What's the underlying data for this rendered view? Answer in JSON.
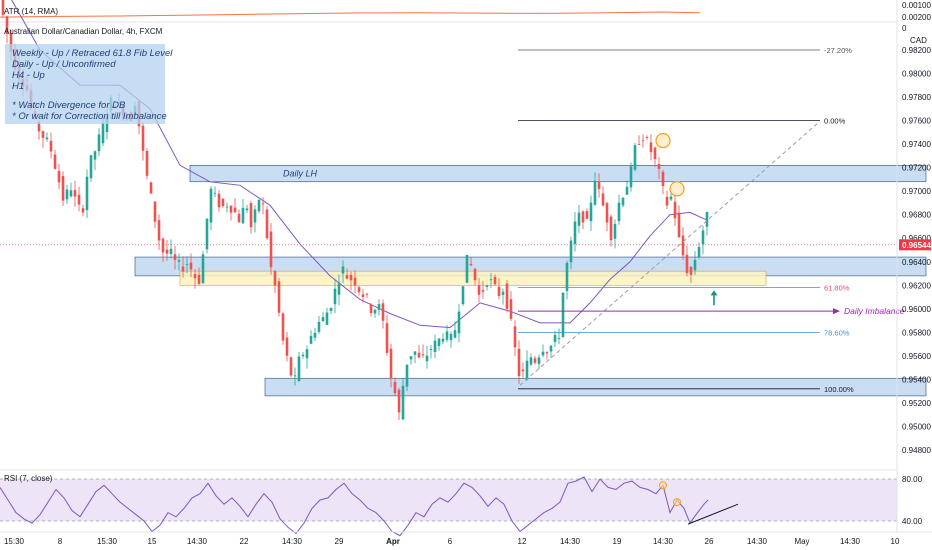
{
  "atr": {
    "label": "ATR (14, RMA)",
    "axis_ticks": [
      "0.00200",
      "0.00100"
    ]
  },
  "symbol": {
    "title": "Australian Dollar/Canadian Dollar, 4h, FXCM",
    "currency": "CAD"
  },
  "notes": [
    "Weekly - Up / Retraced 61.8 Fib Level",
    "Daily    - Up / Unconfirmed",
    "H4       - Up",
    "H1",
    "",
    "* Watch Divergence for DB",
    "* Or wait for Correction till Imbalance"
  ],
  "annotations": {
    "daily_lh": "Daily LH",
    "daily_imbalance": "Daily Imbalance"
  },
  "fib_levels": [
    {
      "label": "-27.20%",
      "price": 0.982,
      "color": "#555555"
    },
    {
      "label": "0.00%",
      "price": 0.976,
      "color": "#131722"
    },
    {
      "label": "61.80%",
      "price": 0.9618,
      "color": "#e84d6b"
    },
    {
      "label": "78.60%",
      "price": 0.958,
      "color": "#3d8fd6"
    },
    {
      "label": "100.00%",
      "price": 0.9532,
      "color": "#131722"
    }
  ],
  "current_price": {
    "value": 0.96544,
    "label": "0.96544",
    "color": "#f23645"
  },
  "price_axis": {
    "ticks": [
      "0.98200",
      "0.98000",
      "0.97800",
      "0.97600",
      "0.97400",
      "0.97200",
      "0.97000",
      "0.96800",
      "0.96600",
      "0.96400",
      "0.96200",
      "0.96000",
      "0.95800",
      "0.95600",
      "0.95400",
      "0.95200",
      "0.95000",
      "0.94800"
    ],
    "top_label": "0"
  },
  "time_axis": {
    "ticks": [
      "15:30",
      "8",
      "15:30",
      "15",
      "14:30",
      "22",
      "14:30",
      "29",
      "Apr",
      "6",
      "12",
      "14:30",
      "19",
      "14:30",
      "26",
      "14:30",
      "May",
      "14:30",
      "10"
    ]
  },
  "rsi": {
    "label": "RSI (7, close)",
    "axis_ticks": [
      "80.00",
      "40.00"
    ],
    "upper": 80,
    "lower": 40
  },
  "colors": {
    "bull": "#26a69a",
    "bear": "#ef5350",
    "ma": "#7e57c2",
    "atr": "#ff7043",
    "rsi": "#7e57c2",
    "zone": "#bcd4f0",
    "zone_border": "#2a4d7a",
    "imbalance_zone": "#fdf3c0"
  },
  "chart_data": {
    "type": "candlestick",
    "title": "Australian Dollar/Canadian Dollar, 4h, FXCM",
    "ylim": [
      0.947,
      0.984
    ],
    "price_path": [
      [
        0,
        0.987
      ],
      [
        6,
        0.9845
      ],
      [
        12,
        0.9822
      ],
      [
        20,
        0.98
      ],
      [
        28,
        0.979
      ],
      [
        36,
        0.976
      ],
      [
        44,
        0.9748
      ],
      [
        52,
        0.9738
      ],
      [
        60,
        0.9712
      ],
      [
        66,
        0.969
      ],
      [
        72,
        0.9706
      ],
      [
        78,
        0.969
      ],
      [
        84,
        0.968
      ],
      [
        90,
        0.972
      ],
      [
        96,
        0.9732
      ],
      [
        104,
        0.9752
      ],
      [
        112,
        0.9776
      ],
      [
        118,
        0.9775
      ],
      [
        126,
        0.9768
      ],
      [
        132,
        0.976
      ],
      [
        138,
        0.978
      ],
      [
        142,
        0.9748
      ],
      [
        148,
        0.9716
      ],
      [
        154,
        0.969
      ],
      [
        160,
        0.9662
      ],
      [
        166,
        0.9646
      ],
      [
        172,
        0.9648
      ],
      [
        178,
        0.9638
      ],
      [
        184,
        0.9635
      ],
      [
        190,
        0.964
      ],
      [
        196,
        0.9628
      ],
      [
        202,
        0.9624
      ],
      [
        208,
        0.9668
      ],
      [
        212,
        0.9702
      ],
      [
        218,
        0.9693
      ],
      [
        224,
        0.9686
      ],
      [
        230,
        0.969
      ],
      [
        236,
        0.9683
      ],
      [
        242,
        0.9675
      ],
      [
        248,
        0.9692
      ],
      [
        254,
        0.9665
      ],
      [
        260,
        0.9695
      ],
      [
        266,
        0.9685
      ],
      [
        272,
        0.9638
      ],
      [
        278,
        0.9615
      ],
      [
        284,
        0.9576
      ],
      [
        290,
        0.9554
      ],
      [
        296,
        0.9535
      ],
      [
        302,
        0.956
      ],
      [
        308,
        0.9565
      ],
      [
        314,
        0.9578
      ],
      [
        320,
        0.9588
      ],
      [
        326,
        0.9592
      ],
      [
        332,
        0.9602
      ],
      [
        338,
        0.9618
      ],
      [
        344,
        0.9635
      ],
      [
        350,
        0.9626
      ],
      [
        356,
        0.9625
      ],
      [
        362,
        0.9615
      ],
      [
        368,
        0.961
      ],
      [
        374,
        0.9598
      ],
      [
        380,
        0.9604
      ],
      [
        386,
        0.9585
      ],
      [
        392,
        0.9545
      ],
      [
        398,
        0.9525
      ],
      [
        402,
        0.9505
      ],
      [
        406,
        0.9545
      ],
      [
        410,
        0.9558
      ],
      [
        416,
        0.9565
      ],
      [
        422,
        0.9555
      ],
      [
        428,
        0.956
      ],
      [
        434,
        0.9568
      ],
      [
        440,
        0.9572
      ],
      [
        446,
        0.958
      ],
      [
        452,
        0.9572
      ],
      [
        458,
        0.9585
      ],
      [
        464,
        0.962
      ],
      [
        470,
        0.9645
      ],
      [
        476,
        0.9628
      ],
      [
        482,
        0.9608
      ],
      [
        488,
        0.9625
      ],
      [
        494,
        0.9622
      ],
      [
        500,
        0.9612
      ],
      [
        506,
        0.9618
      ],
      [
        512,
        0.9592
      ],
      [
        518,
        0.956
      ],
      [
        522,
        0.954
      ],
      [
        526,
        0.9546
      ],
      [
        532,
        0.956
      ],
      [
        538,
        0.9556
      ],
      [
        544,
        0.9568
      ],
      [
        550,
        0.9565
      ],
      [
        556,
        0.9572
      ],
      [
        562,
        0.958
      ],
      [
        566,
        0.9625
      ],
      [
        572,
        0.965
      ],
      [
        578,
        0.9676
      ],
      [
        584,
        0.968
      ],
      [
        590,
        0.967
      ],
      [
        596,
        0.9715
      ],
      [
        602,
        0.9695
      ],
      [
        608,
        0.968
      ],
      [
        614,
        0.966
      ],
      [
        620,
        0.9688
      ],
      [
        626,
        0.97
      ],
      [
        632,
        0.9712
      ],
      [
        638,
        0.974
      ],
      [
        644,
        0.9748
      ],
      [
        650,
        0.974
      ],
      [
        656,
        0.9728
      ],
      [
        662,
        0.9712
      ],
      [
        668,
        0.9688
      ],
      [
        674,
        0.9696
      ],
      [
        680,
        0.9662
      ],
      [
        686,
        0.9642
      ],
      [
        692,
        0.9625
      ],
      [
        698,
        0.9646
      ],
      [
        704,
        0.9664
      ],
      [
        708,
        0.9678
      ]
    ],
    "moving_average": [
      [
        0,
        0.988
      ],
      [
        40,
        0.982
      ],
      [
        80,
        0.979
      ],
      [
        120,
        0.979
      ],
      [
        150,
        0.977
      ],
      [
        180,
        0.9722
      ],
      [
        210,
        0.9708
      ],
      [
        240,
        0.9705
      ],
      [
        270,
        0.9688
      ],
      [
        300,
        0.9655
      ],
      [
        330,
        0.9628
      ],
      [
        360,
        0.9608
      ],
      [
        390,
        0.9596
      ],
      [
        420,
        0.9586
      ],
      [
        450,
        0.9584
      ],
      [
        480,
        0.9605
      ],
      [
        510,
        0.9598
      ],
      [
        540,
        0.9588
      ],
      [
        570,
        0.9588
      ],
      [
        590,
        0.9605
      ],
      [
        610,
        0.9625
      ],
      [
        630,
        0.964
      ],
      [
        650,
        0.9662
      ],
      [
        670,
        0.968
      ],
      [
        690,
        0.9682
      ],
      [
        708,
        0.9675
      ]
    ],
    "zones": [
      {
        "name": "Daily LH",
        "x1": 190,
        "x2": 926,
        "top": 0.9722,
        "bottom": 0.9708
      },
      {
        "name": "support",
        "x1": 135,
        "x2": 926,
        "top": 0.9644,
        "bottom": 0.9628
      },
      {
        "name": "imbalance",
        "x1": 180,
        "x2": 766,
        "top": 0.9632,
        "bottom": 0.962
      },
      {
        "name": "low",
        "x1": 265,
        "x2": 926,
        "top": 0.9541,
        "bottom": 0.9526
      }
    ],
    "markers": [
      {
        "x": 663,
        "price": 0.9743,
        "r": 7
      },
      {
        "x": 677,
        "price": 0.9702,
        "r": 7
      }
    ],
    "trendline": [
      [
        520,
        0.9535
      ],
      [
        818,
        0.9758
      ]
    ],
    "arrow": {
      "x": 714,
      "price_from": 0.9603,
      "price_to": 0.9614
    },
    "atr_path": [
      [
        0,
        9.9
      ],
      [
        60,
        10.4
      ],
      [
        120,
        10.7
      ],
      [
        180,
        11.2
      ],
      [
        240,
        11.8
      ],
      [
        300,
        12.4
      ],
      [
        360,
        12.9
      ],
      [
        420,
        13.0
      ],
      [
        480,
        12.8
      ],
      [
        540,
        12.6
      ],
      [
        600,
        12.9
      ],
      [
        660,
        13.6
      ],
      [
        700,
        13.0
      ]
    ],
    "rsi_path": [
      [
        0,
        72
      ],
      [
        8,
        60
      ],
      [
        16,
        48
      ],
      [
        24,
        42
      ],
      [
        32,
        38
      ],
      [
        40,
        46
      ],
      [
        48,
        58
      ],
      [
        56,
        70
      ],
      [
        64,
        62
      ],
      [
        72,
        50
      ],
      [
        80,
        44
      ],
      [
        88,
        56
      ],
      [
        96,
        68
      ],
      [
        104,
        74
      ],
      [
        112,
        66
      ],
      [
        120,
        58
      ],
      [
        128,
        52
      ],
      [
        136,
        46
      ],
      [
        144,
        40
      ],
      [
        152,
        30
      ],
      [
        160,
        36
      ],
      [
        168,
        48
      ],
      [
        176,
        44
      ],
      [
        184,
        52
      ],
      [
        192,
        62
      ],
      [
        200,
        66
      ],
      [
        208,
        76
      ],
      [
        216,
        64
      ],
      [
        224,
        56
      ],
      [
        232,
        62
      ],
      [
        240,
        54
      ],
      [
        248,
        44
      ],
      [
        256,
        56
      ],
      [
        264,
        66
      ],
      [
        272,
        58
      ],
      [
        280,
        42
      ],
      [
        288,
        34
      ],
      [
        296,
        28
      ],
      [
        304,
        38
      ],
      [
        312,
        52
      ],
      [
        320,
        60
      ],
      [
        328,
        62
      ],
      [
        336,
        70
      ],
      [
        344,
        76
      ],
      [
        352,
        66
      ],
      [
        360,
        60
      ],
      [
        368,
        52
      ],
      [
        376,
        48
      ],
      [
        384,
        40
      ],
      [
        392,
        30
      ],
      [
        400,
        26
      ],
      [
        408,
        36
      ],
      [
        416,
        48
      ],
      [
        424,
        44
      ],
      [
        432,
        56
      ],
      [
        440,
        62
      ],
      [
        448,
        58
      ],
      [
        456,
        66
      ],
      [
        464,
        76
      ],
      [
        472,
        72
      ],
      [
        480,
        64
      ],
      [
        488,
        54
      ],
      [
        496,
        62
      ],
      [
        504,
        56
      ],
      [
        512,
        40
      ],
      [
        520,
        30
      ],
      [
        528,
        36
      ],
      [
        536,
        42
      ],
      [
        544,
        48
      ],
      [
        552,
        52
      ],
      [
        560,
        58
      ],
      [
        568,
        76
      ],
      [
        576,
        78
      ],
      [
        584,
        82
      ],
      [
        592,
        68
      ],
      [
        600,
        80
      ],
      [
        608,
        72
      ],
      [
        616,
        70
      ],
      [
        624,
        76
      ],
      [
        632,
        78
      ],
      [
        640,
        72
      ],
      [
        648,
        70
      ],
      [
        656,
        66
      ],
      [
        663,
        74
      ],
      [
        670,
        48
      ],
      [
        677,
        60
      ],
      [
        684,
        52
      ],
      [
        690,
        38
      ],
      [
        696,
        46
      ],
      [
        704,
        56
      ],
      [
        708,
        60
      ]
    ],
    "rsi_markers": [
      {
        "x": 663,
        "value": 74,
        "r": 3.5
      },
      {
        "x": 677,
        "value": 58,
        "r": 3.5
      }
    ],
    "rsi_trendline": [
      [
        688,
        37
      ],
      [
        738,
        56
      ]
    ]
  }
}
